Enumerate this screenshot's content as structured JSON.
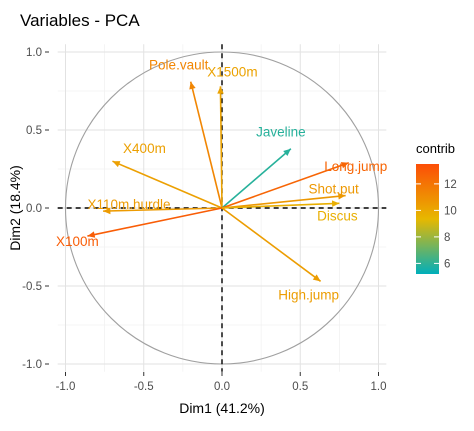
{
  "chart_data": {
    "type": "scatter",
    "title": "Variables - PCA",
    "xlabel": "Dim1 (41.2%)",
    "ylabel": "Dim2 (18.4%)",
    "xlim": [
      -1.05,
      1.05
    ],
    "ylim": [
      -1.05,
      1.05
    ],
    "x_ticks": [
      {
        "value": -1.0,
        "label": "-1.0"
      },
      {
        "value": -0.5,
        "label": "-0.5"
      },
      {
        "value": 0.0,
        "label": "0.0"
      },
      {
        "value": 0.5,
        "label": "0.5"
      },
      {
        "value": 1.0,
        "label": "1.0"
      }
    ],
    "y_ticks": [
      {
        "value": -1.0,
        "label": "-1.0"
      },
      {
        "value": -0.5,
        "label": "-0.5"
      },
      {
        "value": 0.0,
        "label": "0.0"
      },
      {
        "value": 0.5,
        "label": "0.5"
      },
      {
        "value": 1.0,
        "label": "1.0"
      }
    ],
    "grid": true,
    "correlation_circle": true,
    "reference_lines": [
      0,
      0
    ],
    "legend": {
      "title": "contrib",
      "placement": "right",
      "min": 5.2,
      "max": 13.5,
      "ticks": [
        {
          "value": 12,
          "label": "12"
        },
        {
          "value": 10,
          "label": "10"
        },
        {
          "value": 8,
          "label": "8"
        },
        {
          "value": 6,
          "label": "6"
        }
      ],
      "colors": [
        "#00AFBB",
        "#E7B800",
        "#FC4E07"
      ]
    },
    "points": [
      {
        "label": "Pole.vault",
        "x": -0.2,
        "y": 0.81,
        "contrib": 11.3
      },
      {
        "label": "X1500m",
        "x": -0.01,
        "y": 0.78,
        "contrib": 10.2
      },
      {
        "label": "Javeline",
        "x": 0.44,
        "y": 0.38,
        "contrib": 5.9
      },
      {
        "label": "X400m",
        "x": -0.7,
        "y": 0.3,
        "contrib": 10.3
      },
      {
        "label": "Long.jump",
        "x": 0.81,
        "y": 0.29,
        "contrib": 12.6
      },
      {
        "label": "Shot.put",
        "x": 0.79,
        "y": 0.08,
        "contrib": 10.6
      },
      {
        "label": "Discus",
        "x": 0.75,
        "y": 0.03,
        "contrib": 9.7
      },
      {
        "label": "X110m.hurdle",
        "x": -0.76,
        "y": -0.02,
        "contrib": 10.5
      },
      {
        "label": "X100m",
        "x": -0.86,
        "y": -0.18,
        "contrib": 12.9
      },
      {
        "label": "High.jump",
        "x": 0.63,
        "y": -0.47,
        "contrib": 10.4
      }
    ]
  }
}
